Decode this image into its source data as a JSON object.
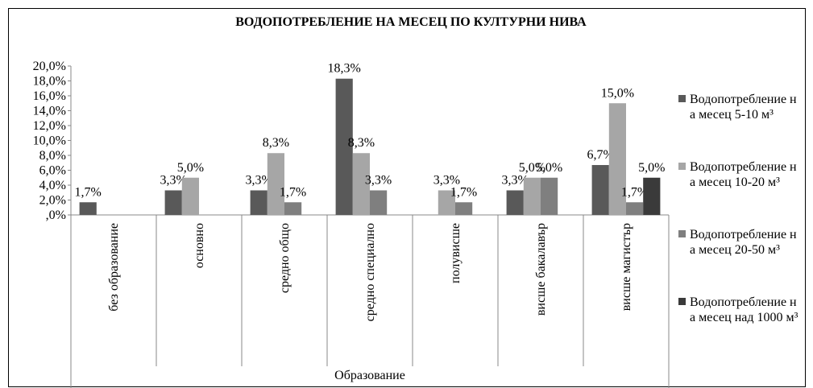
{
  "chart_data": {
    "type": "bar",
    "title": "ВОДОПОТРЕБЛЕНИЕ НА МЕСЕЦ ПО КУЛТУРНИ НИВА",
    "x_label": "Образование",
    "categories": [
      "без образование",
      "основно",
      "средно общо",
      "средно специално",
      "полувисше",
      "висше бакалавър",
      "висше магистър"
    ],
    "series": [
      {
        "name": "Водопотребление на месец 5-10 м³",
        "color": "#595959",
        "values": [
          1.7,
          3.3,
          3.3,
          18.3,
          null,
          3.3,
          6.7
        ],
        "value_labels": [
          "1,7%",
          "3,3%",
          "3,3%",
          "18,3%",
          null,
          "3,3%",
          "6,7%"
        ]
      },
      {
        "name": "Водопотребление на месец 10-20 м³",
        "color": "#a6a6a6",
        "values": [
          null,
          5.0,
          8.3,
          8.3,
          3.3,
          5.0,
          15.0
        ],
        "value_labels": [
          null,
          "5,0%",
          "8,3%",
          "8,3%",
          "3,3%",
          "5,0%",
          "15,0%"
        ]
      },
      {
        "name": "Водопотребление на месец 20-50 м³",
        "color": "#7f7f7f",
        "values": [
          null,
          null,
          1.7,
          3.3,
          1.7,
          5.0,
          1.7
        ],
        "value_labels": [
          null,
          null,
          "1,7%",
          "3,3%",
          "1,7%",
          "5,0%",
          "1,7%"
        ]
      },
      {
        "name": "Водопотребление на месец над 1000 м³",
        "color": "#3a3a3a",
        "values": [
          null,
          null,
          null,
          null,
          null,
          null,
          5.0
        ],
        "value_labels": [
          null,
          null,
          null,
          null,
          null,
          null,
          "5,0%"
        ]
      }
    ],
    "ylim": [
      0,
      20
    ],
    "yticks": [
      {
        "value": 0,
        "label": ",0%"
      },
      {
        "value": 2,
        "label": "2,0%"
      },
      {
        "value": 4,
        "label": "4,0%"
      },
      {
        "value": 6,
        "label": "6,0%"
      },
      {
        "value": 8,
        "label": "8,0%"
      },
      {
        "value": 10,
        "label": "10,0%"
      },
      {
        "value": 12,
        "label": "12,0%"
      },
      {
        "value": 14,
        "label": "14,0%"
      },
      {
        "value": 16,
        "label": "16,0%"
      },
      {
        "value": 18,
        "label": "18,0%"
      },
      {
        "value": 20,
        "label": "20,0%"
      }
    ],
    "legend": "right"
  }
}
